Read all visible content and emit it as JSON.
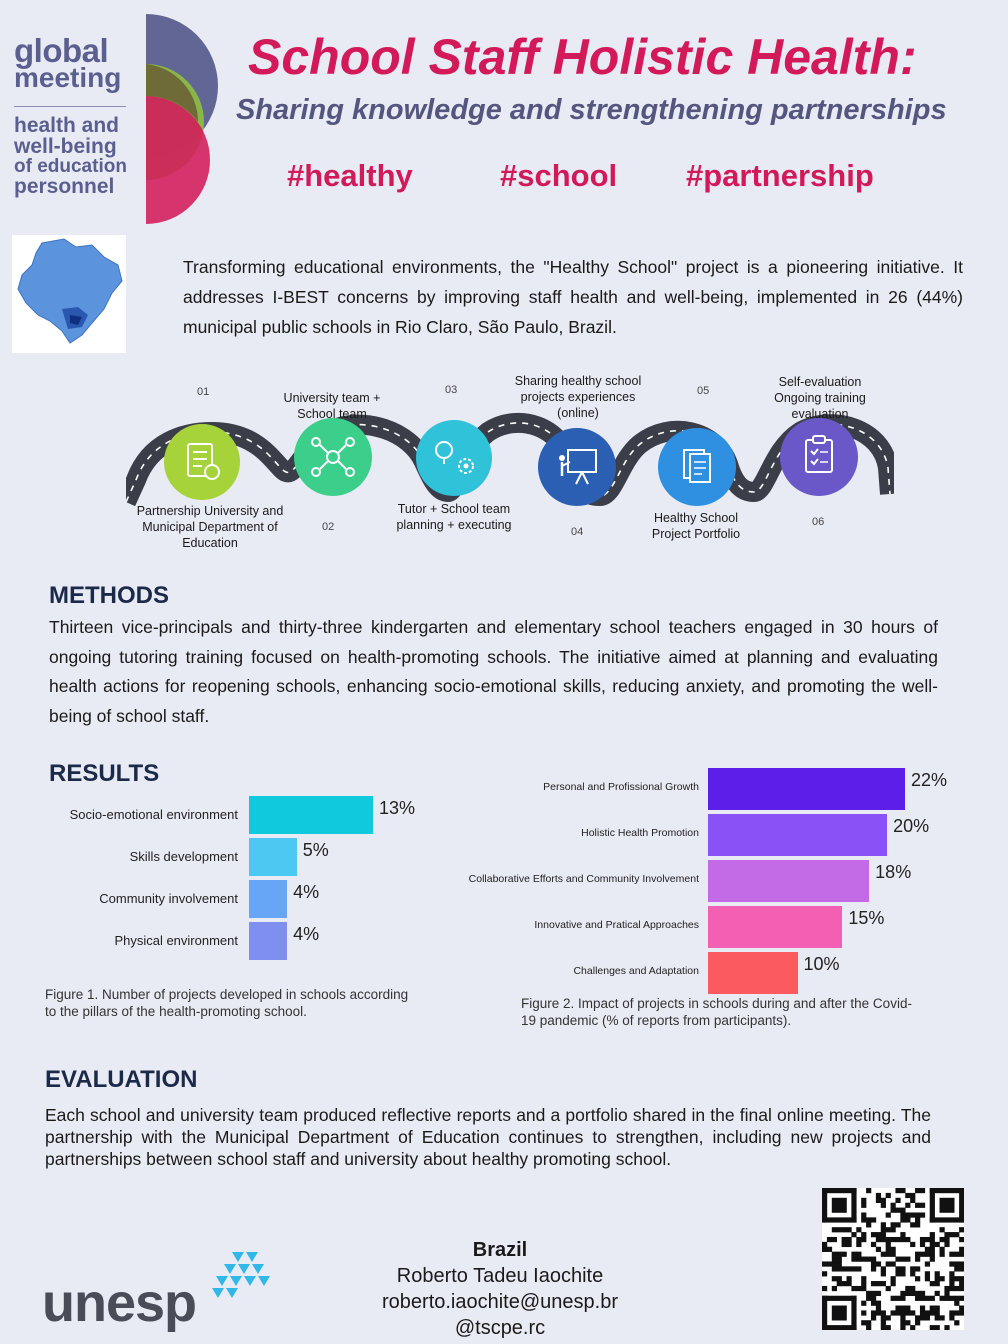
{
  "logo": {
    "line1": "global",
    "line2": "meeting",
    "line3": "health and",
    "line4": "well-being",
    "line5": "of education",
    "line6": "personnel"
  },
  "header": {
    "title": "School Staff Holistic Health:",
    "subtitle": "Sharing knowledge and strengthening partnerships",
    "hashtags": [
      "#healthy",
      "#school",
      "#partnership"
    ]
  },
  "intro": {
    "text": "Transforming educational environments, the \"Healthy School\" project is a pioneering initiative. It addresses I-BEST concerns by improving staff health and well-being, implemented in 26 (44%) municipal public schools in Rio Claro, São Paulo, Brazil."
  },
  "roadmap": {
    "steps": [
      {
        "num": "01",
        "label": "Partnership University and Municipal Department of Education",
        "icon": "checklist-clock-icon",
        "color": "#a6d23a"
      },
      {
        "num": "02",
        "label": "University team + School team",
        "icon": "network-icon",
        "color": "#3ccf8c"
      },
      {
        "num": "03",
        "label": "Tutor + School team planning + executing",
        "icon": "idea-gears-icon",
        "color": "#2fc2d8"
      },
      {
        "num": "04",
        "label": "Sharing healthy school projects experiences (online)",
        "icon": "presentation-icon",
        "color": "#2b5fb4"
      },
      {
        "num": "05",
        "label": "Healthy School Project Portfolio",
        "icon": "documents-icon",
        "color": "#2f8fe0"
      },
      {
        "num": "06",
        "label": "Self-evaluation Ongoing training evaluation",
        "icon": "clipboard-icon",
        "color": "#6a57c8"
      }
    ]
  },
  "methods": {
    "heading": "METHODS",
    "text": "Thirteen vice-principals and thirty-three kindergarten and elementary school teachers engaged in 30 hours of ongoing tutoring training focused on health-promoting schools. The initiative aimed at planning and evaluating health actions for reopening schools, enhancing socio-emotional skills, reducing anxiety, and promoting the well-being of school staff."
  },
  "results": {
    "heading": "RESULTS"
  },
  "chart_data": [
    {
      "type": "bar",
      "orientation": "horizontal",
      "categories": [
        "Socio-emotional environment",
        "Skills development",
        "Community involvement",
        "Physical environment"
      ],
      "values": [
        13,
        5,
        4,
        4
      ],
      "value_labels": [
        "13%",
        "5%",
        "4%",
        "4%"
      ],
      "colors": [
        "#10c9dd",
        "#4cc8f2",
        "#67a6f4",
        "#7e8ff0"
      ],
      "xlim": [
        0,
        13
      ],
      "caption": "Figure 1. Number of projects developed in schools according to the pillars of the health-promoting school."
    },
    {
      "type": "bar",
      "orientation": "horizontal",
      "categories": [
        "Personal and Profissional Growth",
        "Holistic Health Promotion",
        "Collaborative Efforts and Community Involvement",
        "Innovative and Pratical Approaches",
        "Challenges and Adaptation"
      ],
      "values": [
        22,
        20,
        18,
        15,
        10
      ],
      "value_labels": [
        "22%",
        "20%",
        "18%",
        "15%",
        "10%"
      ],
      "colors": [
        "#5c1ee8",
        "#8a52f6",
        "#c36be6",
        "#f25fb3",
        "#fb5a60"
      ],
      "xlim": [
        0,
        22
      ],
      "caption": "Figure 2. Impact of  projects in schools during and after the Covid-19 pandemic (% of reports from participants)."
    }
  ],
  "evaluation": {
    "heading": "EVALUATION",
    "text": "Each school and university team produced reflective reports and a portfolio shared in the final online meeting. The partnership with the Municipal Department of Education continues to strengthen, including new projects and partnerships between school staff and university about healthy promoting school."
  },
  "footer": {
    "unesp": "unesp",
    "country": "Brazil",
    "author": "Roberto Tadeu Iaochite",
    "email": "roberto.iaochite@unesp.br",
    "handle": "@tscpe.rc"
  }
}
